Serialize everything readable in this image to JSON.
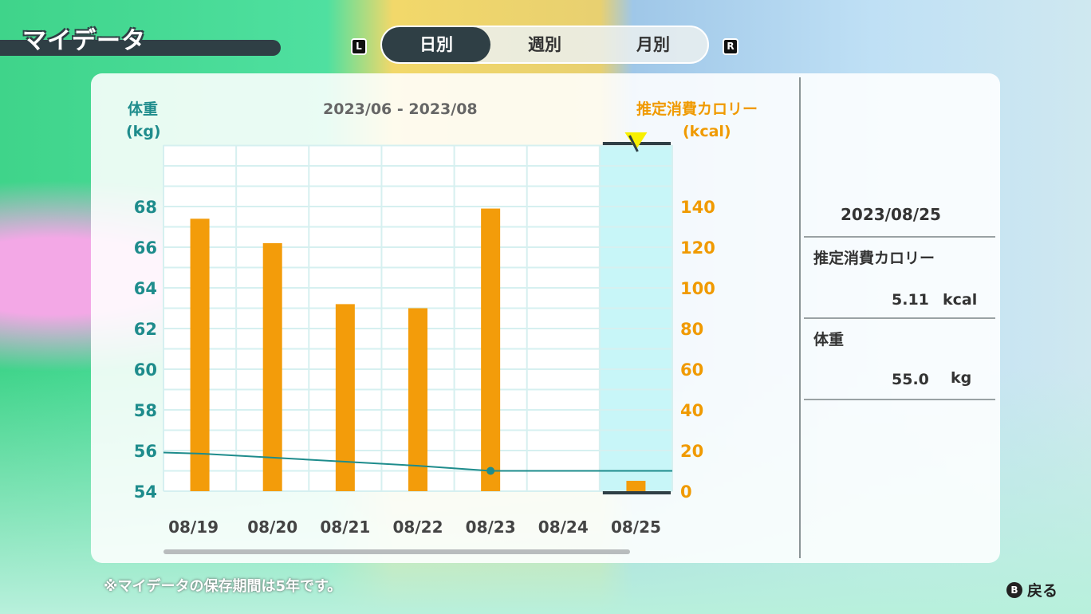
{
  "header": {
    "title": "マイデータ",
    "left_key": "L",
    "right_key": "R",
    "tabs": [
      {
        "label": "日別",
        "active": true
      },
      {
        "label": "週別",
        "active": false
      },
      {
        "label": "月別",
        "active": false
      }
    ]
  },
  "chart": {
    "left_axis_title": "体重",
    "left_axis_unit": "(kg)",
    "period": "2023/06 - 2023/08",
    "right_axis_title": "推定消費カロリー",
    "right_axis_unit": "(kcal)"
  },
  "chart_data": {
    "type": "bar",
    "categories": [
      "08/19",
      "08/20",
      "08/21",
      "08/22",
      "08/23",
      "08/24",
      "08/25"
    ],
    "series": [
      {
        "name": "推定消費カロリー",
        "axis": "right",
        "type": "bar",
        "values": [
          134,
          122,
          92,
          90,
          139,
          null,
          5.11
        ],
        "color": "#f39c0a"
      },
      {
        "name": "体重",
        "axis": "left",
        "type": "line",
        "values": [
          55.85,
          55.65,
          55.45,
          55.25,
          55.0,
          55.0,
          55.0
        ],
        "markers": [
          "08/23"
        ],
        "color": "#1e8c8c"
      }
    ],
    "left_ylim": [
      54,
      68
    ],
    "left_ticks": [
      "54",
      "56",
      "58",
      "60",
      "62",
      "64",
      "66",
      "68"
    ],
    "right_ylim": [
      0,
      140
    ],
    "right_ticks": [
      "0",
      "20",
      "40",
      "60",
      "80",
      "100",
      "120",
      "140"
    ],
    "selected": "08/25",
    "grid": true
  },
  "detail": {
    "date": "2023/08/25",
    "calorie_label": "推定消費カロリー",
    "calorie_value": "5.11",
    "calorie_unit": "kcal",
    "weight_label": "体重",
    "weight_value": "55.0",
    "weight_unit": "kg"
  },
  "footer": {
    "note": "※マイデータの保存期間は5年です。",
    "back_key": "B",
    "back_label": "戻る"
  },
  "colors": {
    "accent_teal": "#1e8c8c",
    "accent_orange": "#f09a00",
    "highlight": "#c8f6f8",
    "dark": "#2f3f45"
  }
}
